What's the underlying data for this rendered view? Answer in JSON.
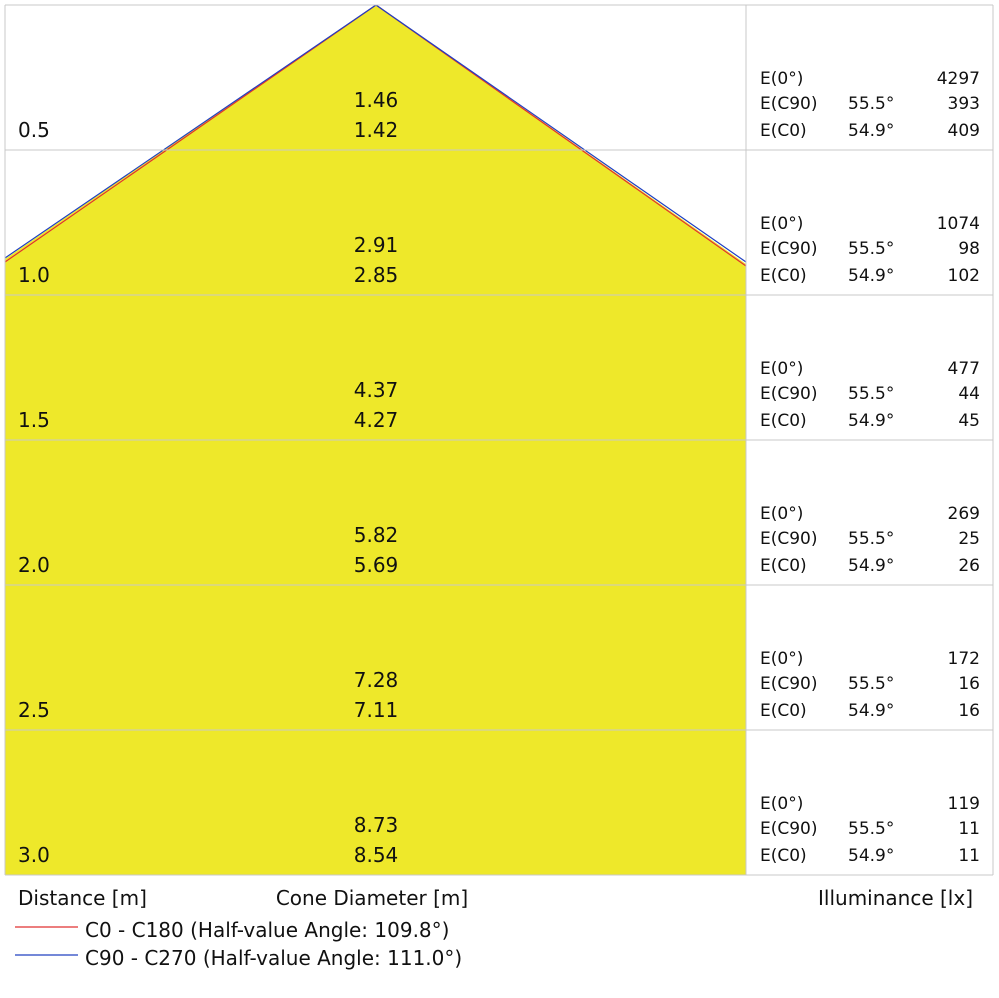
{
  "labels": {
    "e0": "E(0°)",
    "ec90": "E(C90)",
    "ec0": "E(C0)"
  },
  "rows": [
    {
      "distance": "0.5",
      "diameter_c90": "1.46",
      "diameter_c0": "1.42",
      "e0": "4297",
      "angle_c90": "55.5°",
      "e_c90": "393",
      "angle_c0": "54.9°",
      "e_c0": "409"
    },
    {
      "distance": "1.0",
      "diameter_c90": "2.91",
      "diameter_c0": "2.85",
      "e0": "1074",
      "angle_c90": "55.5°",
      "e_c90": "98",
      "angle_c0": "54.9°",
      "e_c0": "102"
    },
    {
      "distance": "1.5",
      "diameter_c90": "4.37",
      "diameter_c0": "4.27",
      "e0": "477",
      "angle_c90": "55.5°",
      "e_c90": "44",
      "angle_c0": "54.9°",
      "e_c0": "45"
    },
    {
      "distance": "2.0",
      "diameter_c90": "5.82",
      "diameter_c0": "5.69",
      "e0": "269",
      "angle_c90": "55.5°",
      "e_c90": "25",
      "angle_c0": "54.9°",
      "e_c0": "26"
    },
    {
      "distance": "2.5",
      "diameter_c90": "7.28",
      "diameter_c0": "7.11",
      "e0": "172",
      "angle_c90": "55.5°",
      "e_c90": "16",
      "angle_c0": "54.9°",
      "e_c0": "16"
    },
    {
      "distance": "3.0",
      "diameter_c90": "8.73",
      "diameter_c0": "8.54",
      "e0": "119",
      "angle_c90": "55.5°",
      "e_c90": "11",
      "angle_c0": "54.9°",
      "e_c0": "11"
    }
  ],
  "footer": {
    "distance": "Distance [m]",
    "diameter": "Cone Diameter [m]",
    "illuminance": "Illuminance [lx]"
  },
  "legend": {
    "c0": "C0 - C180 (Half-value Angle: 109.8°)",
    "c90": "C90 - C270 (Half-value Angle: 111.0°)"
  }
}
